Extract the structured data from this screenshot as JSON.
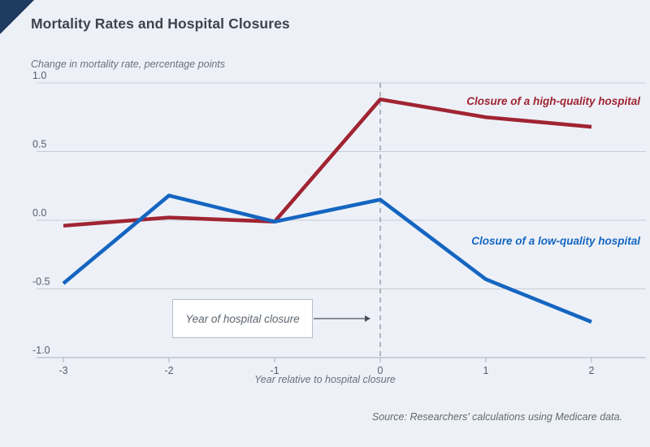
{
  "page": {
    "title": "Mortality Rates and Hospital Closures",
    "subtitle": "Change in mortality rate, percentage points",
    "source": "Source: Researchers' calculations using Medicare data."
  },
  "colors": {
    "background": "#edf1f7",
    "corner_triangle": "#1d3a5f",
    "high_quality": "#a02432",
    "low_quality": "#1565c1",
    "gridline": "#c6ccd4",
    "axis_line": "#a9b0b8",
    "tick_text": "#555d66",
    "dashed_line": "#8d949c",
    "arrow": "#4a5158"
  },
  "labels": {
    "high_quality": "Closure of a high-quality hospital",
    "low_quality": "Closure of a low-quality hospital",
    "annotation": "Year of hospital closure"
  },
  "chart_data": {
    "type": "line",
    "title": "Mortality Rates and Hospital Closures",
    "xlabel": "Year relative to hospital closure",
    "ylabel": "Change in mortality rate, percentage points",
    "x": [
      -3,
      -2,
      -1,
      0,
      1,
      2
    ],
    "series": [
      {
        "name": "Closure of a high-quality hospital",
        "color_key": "high_quality",
        "values": [
          -0.04,
          0.02,
          -0.01,
          0.88,
          0.75,
          0.68
        ]
      },
      {
        "name": "Closure of a low-quality hospital",
        "color_key": "low_quality",
        "values": [
          -0.46,
          0.18,
          -0.01,
          0.15,
          -0.43,
          -0.74
        ]
      }
    ],
    "ylim": [
      -1.0,
      1.0
    ],
    "xlim": [
      -3,
      2
    ],
    "yticks": [
      1.0,
      0.5,
      0.0,
      -0.5,
      -1.0
    ],
    "ytick_labels": [
      "1.0",
      "0.5",
      "0.0",
      "-0.5",
      "-1.0"
    ],
    "xticks": [
      -3,
      -2,
      -1,
      0,
      1,
      2
    ],
    "xtick_labels": [
      "-3",
      "-2",
      "-1",
      "0",
      "1",
      "2"
    ],
    "grid": "horizontal",
    "legend_position": "inline-labels",
    "event_line_x": 0,
    "annotation": {
      "text": "Year of hospital closure",
      "arrow_to_x": 0
    }
  }
}
